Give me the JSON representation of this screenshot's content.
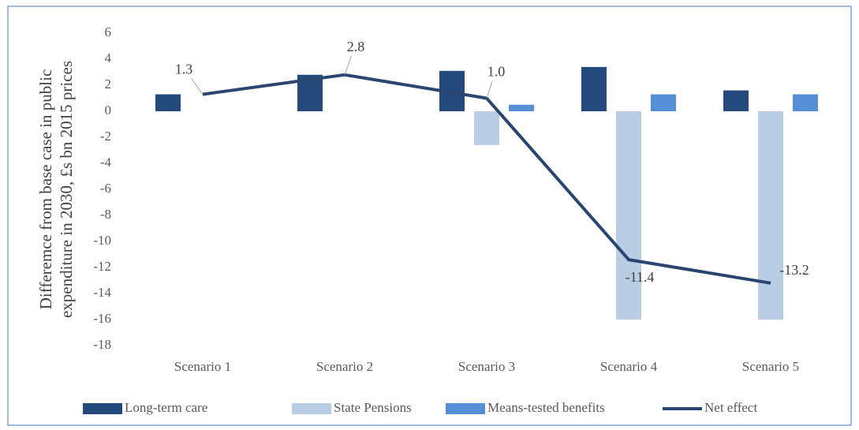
{
  "chart_data": {
    "type": "bar_line",
    "y_label": [
      "Differemce from base case  in public",
      "expenditure  in 2030, £s bn  2015 prices"
    ],
    "categories": [
      "Scenario 1",
      "Scenario 2",
      "Scenario 3",
      "Scenario 4",
      "Scenario 5"
    ],
    "series": [
      {
        "name": "Long-term care",
        "type": "bar",
        "color": "#23497d",
        "values": [
          1.3,
          2.8,
          3.1,
          3.4,
          1.6
        ]
      },
      {
        "name": "State Pensions",
        "type": "bar",
        "color": "#b9cde5",
        "values": [
          null,
          null,
          -2.6,
          -16,
          -16
        ]
      },
      {
        "name": "Means-tested benefits",
        "type": "bar",
        "color": "#558ed5",
        "values": [
          null,
          null,
          0.5,
          1.3,
          1.3
        ]
      },
      {
        "name": "Net effect",
        "type": "line",
        "color": "#2a4670",
        "values": [
          1.3,
          2.8,
          1.0,
          -11.4,
          -13.2
        ],
        "value_labels": [
          "1.3",
          "2.8",
          "1.0",
          "-11.4",
          "-13.2"
        ]
      }
    ],
    "ylim": [
      -18,
      6
    ],
    "yticks": [
      6,
      4,
      2,
      0,
      -2,
      -4,
      -6,
      -8,
      -10,
      -12,
      -14,
      -16,
      -18
    ],
    "grid": false
  }
}
